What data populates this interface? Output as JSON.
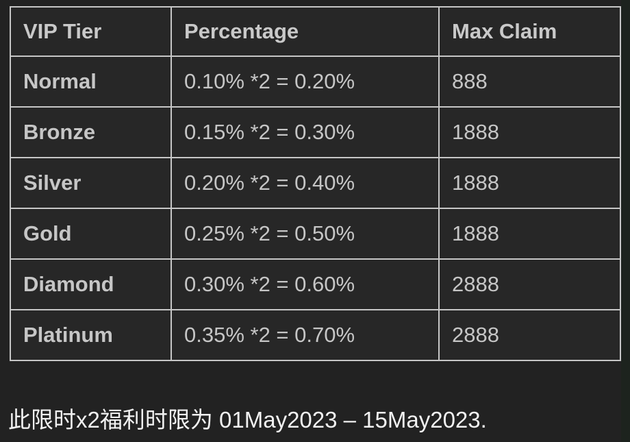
{
  "page": {
    "background_color": "#222222",
    "edge_strip_color": "#1d231e",
    "footnote": "此限时x2福利时限为 01May2023 – 15May2023."
  },
  "table": {
    "border_color": "#c7c7c7",
    "cell_background": "#272727",
    "text_color": "#c6c6c6",
    "headers": [
      "VIP Tier",
      "Percentage",
      "Max Claim"
    ],
    "rows": [
      {
        "tier": "Normal",
        "percentage": "0.10% *2 = 0.20%",
        "max_claim": "888"
      },
      {
        "tier": "Bronze",
        "percentage": "0.15% *2 = 0.30%",
        "max_claim": "1888"
      },
      {
        "tier": "Silver",
        "percentage": "0.20% *2 = 0.40%",
        "max_claim": "1888"
      },
      {
        "tier": "Gold",
        "percentage": "0.25% *2 = 0.50%",
        "max_claim": "1888"
      },
      {
        "tier": "Diamond",
        "percentage": "0.30% *2 = 0.60%",
        "max_claim": "2888"
      },
      {
        "tier": "Platinum",
        "percentage": "0.35% *2 = 0.70%",
        "max_claim": "2888"
      }
    ]
  }
}
